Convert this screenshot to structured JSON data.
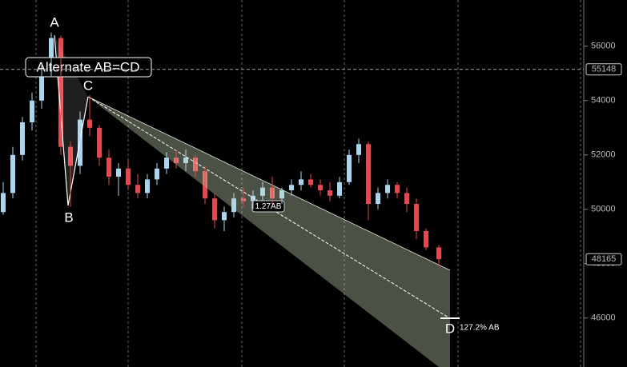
{
  "chart_data": {
    "type": "candlestick",
    "open": [
      49900,
      50600,
      52000,
      53200,
      54000,
      55100,
      56300,
      52300,
      51600,
      53300,
      53000,
      51900,
      51200,
      51500,
      50900,
      50600,
      51100,
      51500,
      51900,
      51700,
      51900,
      51400,
      50400,
      49600,
      49900,
      50400,
      50300,
      50500,
      50800,
      50400,
      50700,
      50900,
      51100,
      50900,
      50700,
      50500,
      51000,
      52000,
      52400,
      50200,
      50600,
      50900,
      50600,
      50200,
      49200,
      48600
    ],
    "high": [
      51000,
      52300,
      53400,
      54300,
      55300,
      56500,
      56400,
      52500,
      53600,
      54200,
      53100,
      52200,
      51700,
      51800,
      51300,
      51300,
      51700,
      52100,
      52200,
      52200,
      52000,
      51600,
      50600,
      50100,
      50600,
      50800,
      50700,
      51000,
      51200,
      50800,
      51100,
      51400,
      51300,
      51100,
      51000,
      51200,
      52200,
      52600,
      52500,
      50800,
      51100,
      51000,
      50800,
      50400,
      49300,
      48700
    ],
    "low": [
      49800,
      50400,
      51800,
      52900,
      53700,
      54900,
      52000,
      50100,
      51300,
      52700,
      51600,
      50900,
      50500,
      50700,
      50400,
      50400,
      50900,
      51300,
      51500,
      51400,
      51200,
      50200,
      49300,
      49200,
      49700,
      50100,
      50000,
      50300,
      50200,
      50200,
      50500,
      50700,
      50800,
      50500,
      50300,
      50400,
      50900,
      51700,
      49600,
      50000,
      50400,
      50400,
      49900,
      48900,
      48500,
      47900
    ],
    "close": [
      50600,
      52000,
      53200,
      54000,
      55100,
      56300,
      52300,
      51600,
      53300,
      53000,
      51900,
      51200,
      51500,
      50900,
      50600,
      51100,
      51500,
      51900,
      51700,
      51900,
      51400,
      50400,
      49600,
      49900,
      50400,
      50300,
      50500,
      50800,
      50400,
      50700,
      50900,
      51100,
      50900,
      50700,
      50500,
      51000,
      52000,
      52400,
      50200,
      50600,
      50900,
      50600,
      50200,
      49200,
      48600,
      48165
    ],
    "up_color": "#a9d6ee",
    "down_color": "#e5484d",
    "ylim": [
      44200,
      57700
    ],
    "yticks": [
      46000,
      48000,
      50000,
      52000,
      54000,
      56000
    ],
    "price_lines": [
      55148,
      48165
    ],
    "annotations": {
      "title": "Alternate AB=CD",
      "points": [
        "A",
        "B",
        "C",
        "D"
      ],
      "ratio": "1.27AB",
      "target": "127.2% AB"
    }
  }
}
